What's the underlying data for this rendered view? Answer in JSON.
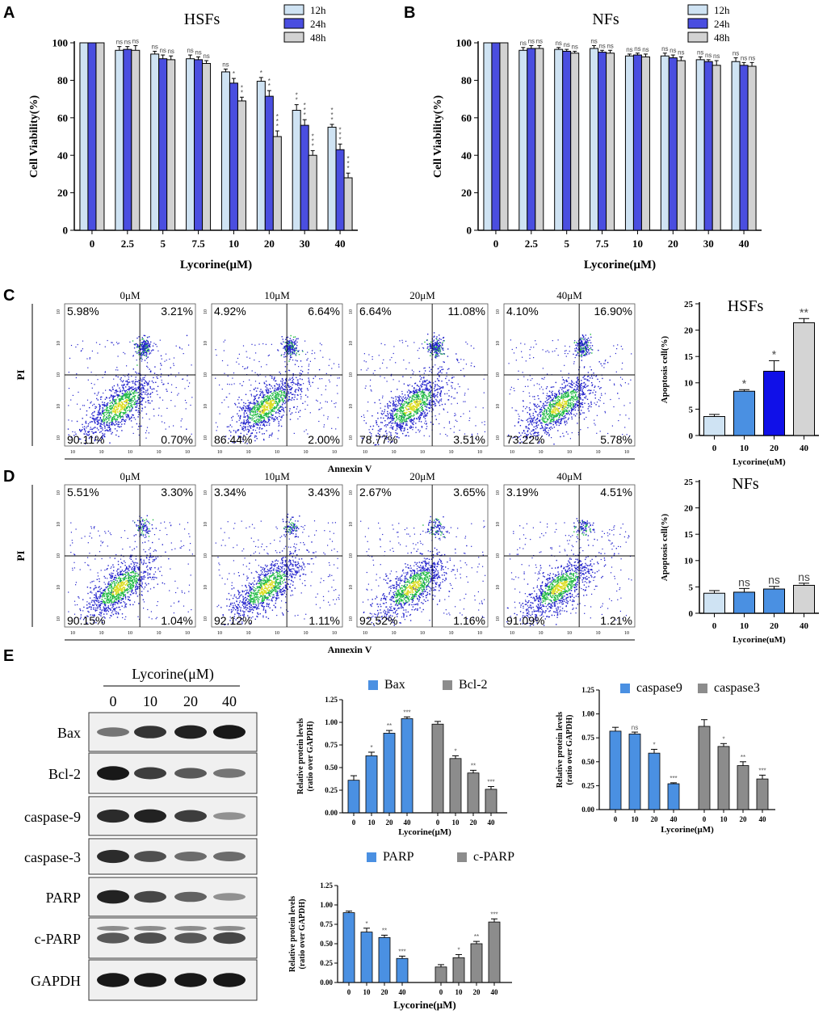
{
  "colors": {
    "series12h": "#cfe3f3",
    "series24h": "#4a4ee0",
    "series48h": "#d2d2d2",
    "hsf_apop": [
      "#cfe3f3",
      "#4a90e2",
      "#1010e8",
      "#d4d4d4"
    ],
    "nf_apop": [
      "#cfe3f3",
      "#4a90e2",
      "#4a90e2",
      "#d4d4d4"
    ],
    "blue_bar": "#4a90e2",
    "gray_bar": "#8c8c8c",
    "dot_blue": "#2222cc",
    "dot_green": "#22bb44",
    "dot_yellow": "#dddd22"
  },
  "panel_labels": {
    "A": "A",
    "B": "B",
    "C": "C",
    "D": "D",
    "E": "E"
  },
  "chart_data": [
    {
      "id": "A",
      "type": "bar",
      "title": "HSFs",
      "xlabel": "Lycorine(μM)",
      "ylabel": "Cell Viability(%)",
      "ylim": [
        0,
        100
      ],
      "yticks": [
        "0",
        "20",
        "40",
        "60",
        "80",
        "100"
      ],
      "categories": [
        "0",
        "2.5",
        "5",
        "7.5",
        "10",
        "20",
        "30",
        "40"
      ],
      "series": [
        {
          "name": "12h",
          "values": [
            100,
            96,
            94,
            91.5,
            84.5,
            79.5,
            64,
            55
          ],
          "errors": [
            0,
            2,
            1.5,
            2,
            1.5,
            2,
            3,
            1.5
          ],
          "sig": [
            "",
            "ns",
            "ns",
            "ns",
            "ns",
            "*",
            "**",
            "***"
          ]
        },
        {
          "name": "24h",
          "values": [
            100,
            96.5,
            91.5,
            91,
            78.5,
            71.5,
            56,
            43
          ],
          "errors": [
            0,
            1.5,
            2,
            1.5,
            2.5,
            3,
            3,
            3
          ],
          "sig": [
            "",
            "ns",
            "ns",
            "ns",
            "*",
            "**",
            "***",
            "***"
          ]
        },
        {
          "name": "48h",
          "values": [
            100,
            96,
            91,
            89,
            69,
            50,
            40,
            28
          ],
          "errors": [
            0,
            2.5,
            2,
            1.5,
            2,
            3,
            2.5,
            2.5
          ],
          "sig": [
            "",
            "ns",
            "ns",
            "ns",
            "**",
            "***",
            "***",
            "***"
          ]
        }
      ]
    },
    {
      "id": "B",
      "type": "bar",
      "title": "NFs",
      "xlabel": "Lycorine(μM)",
      "ylabel": "Cell Viability(%)",
      "ylim": [
        0,
        100
      ],
      "yticks": [
        "0",
        "20",
        "40",
        "60",
        "80",
        "100"
      ],
      "categories": [
        "0",
        "2.5",
        "5",
        "7.5",
        "10",
        "20",
        "30",
        "40"
      ],
      "series": [
        {
          "name": "12h",
          "values": [
            100,
            96,
            96.5,
            97,
            93,
            93,
            91,
            90
          ],
          "errors": [
            0,
            1.5,
            1,
            1.5,
            1,
            1.5,
            1.5,
            2
          ],
          "sig": [
            "",
            "ns",
            "ns",
            "ns",
            "ns",
            "ns",
            "ns",
            "ns"
          ]
        },
        {
          "name": "24h",
          "values": [
            100,
            97,
            95.5,
            95,
            93.5,
            92,
            90,
            88
          ],
          "errors": [
            0,
            1.5,
            1,
            1,
            1,
            1.5,
            1,
            1.5
          ],
          "sig": [
            "",
            "ns",
            "ns",
            "ns",
            "ns",
            "ns",
            "ns",
            "ns"
          ]
        },
        {
          "name": "48h",
          "values": [
            100,
            97,
            94.5,
            94.5,
            92.5,
            90.5,
            88,
            87.5
          ],
          "errors": [
            0,
            1.5,
            1,
            1.5,
            1.5,
            2,
            2.5,
            2
          ],
          "sig": [
            "",
            "ns",
            "ns",
            "ns",
            "ns",
            "ns",
            "ns",
            "ns"
          ]
        }
      ]
    },
    {
      "id": "C-flow",
      "type": "scatter",
      "ylabel": "PI",
      "xlabel": "Annexin V",
      "tick_labels": [
        "10",
        "10",
        "10",
        "10",
        "10",
        "10",
        "10",
        "10",
        "10",
        "10"
      ],
      "plots": [
        {
          "title": "0μM",
          "quadrants": {
            "ul": "5.98%",
            "ur": "3.21%",
            "ll": "90.11%",
            "lr": "0.70%"
          },
          "upper_right_cluster": true
        },
        {
          "title": "10μM",
          "quadrants": {
            "ul": "4.92%",
            "ur": "6.64%",
            "ll": "86.44%",
            "lr": "2.00%"
          },
          "upper_right_cluster": true
        },
        {
          "title": "20μM",
          "quadrants": {
            "ul": "6.64%",
            "ur": "11.08%",
            "ll": "78.77%",
            "lr": "3.51%"
          },
          "upper_right_cluster": true
        },
        {
          "title": "40μM",
          "quadrants": {
            "ul": "4.10%",
            "ur": "16.90%",
            "ll": "73.22%",
            "lr": "5.78%"
          },
          "upper_right_cluster": true
        }
      ]
    },
    {
      "id": "C-bar",
      "type": "bar",
      "title": "HSFs",
      "xlabel": "Lycorine(uM)",
      "ylabel": "Apoptosis cell(%)",
      "ylim": [
        0,
        25
      ],
      "yticks": [
        "0",
        "5",
        "10",
        "15",
        "20",
        "25"
      ],
      "categories": [
        "0",
        "10",
        "20",
        "40"
      ],
      "values": [
        3.6,
        8.4,
        12.2,
        21.4
      ],
      "errors": [
        0.4,
        0.3,
        2,
        0.8
      ],
      "sig": [
        "",
        "*",
        "*",
        "**"
      ]
    },
    {
      "id": "D-flow",
      "type": "scatter",
      "ylabel": "PI",
      "xlabel": "Annexin V",
      "tick_labels": [
        "10",
        "10",
        "10",
        "10",
        "10",
        "10",
        "10",
        "10",
        "10",
        "10"
      ],
      "plots": [
        {
          "title": "0μM",
          "quadrants": {
            "ul": "5.51%",
            "ur": "3.30%",
            "ll": "90.15%",
            "lr": "1.04%"
          },
          "upper_right_cluster": false
        },
        {
          "title": "10μM",
          "quadrants": {
            "ul": "3.34%",
            "ur": "3.43%",
            "ll": "92.12%",
            "lr": "1.11%"
          },
          "upper_right_cluster": false
        },
        {
          "title": "20μM",
          "quadrants": {
            "ul": "2.67%",
            "ur": "3.65%",
            "ll": "92.52%",
            "lr": "1.16%"
          },
          "upper_right_cluster": false
        },
        {
          "title": "40μM",
          "quadrants": {
            "ul": "3.19%",
            "ur": "4.51%",
            "ll": "91.09%",
            "lr": "1.21%"
          },
          "upper_right_cluster": false
        }
      ]
    },
    {
      "id": "D-bar",
      "type": "bar",
      "title": "NFs",
      "xlabel": "Lycorine(uM)",
      "ylabel": "Apoptosis cell(%)",
      "ylim": [
        0,
        25
      ],
      "yticks": [
        "0",
        "5",
        "10",
        "15",
        "20",
        "25"
      ],
      "categories": [
        "0",
        "10",
        "20",
        "40"
      ],
      "values": [
        3.8,
        4.0,
        4.6,
        5.3
      ],
      "errors": [
        0.5,
        0.7,
        0.5,
        0.4
      ],
      "sig": [
        "",
        "ns",
        "ns",
        "ns"
      ]
    },
    {
      "id": "E-blot",
      "type": "table",
      "header": "Lycorine(μM)",
      "lanes": [
        "0",
        "10",
        "20",
        "40"
      ],
      "rows": [
        {
          "name": "Bax",
          "intensity": [
            0.45,
            0.8,
            0.9,
            0.95
          ]
        },
        {
          "name": "Bcl-2",
          "intensity": [
            0.95,
            0.75,
            0.6,
            0.45
          ]
        },
        {
          "name": "caspase-9",
          "intensity": [
            0.85,
            0.9,
            0.75,
            0.3
          ]
        },
        {
          "name": "caspase-3",
          "intensity": [
            0.85,
            0.65,
            0.5,
            0.5
          ]
        },
        {
          "name": "PARP",
          "intensity": [
            0.9,
            0.7,
            0.55,
            0.3
          ]
        },
        {
          "name": "c-PARP",
          "intensity": [
            0.6,
            0.65,
            0.6,
            0.7
          ]
        },
        {
          "name": "GAPDH",
          "intensity": [
            0.95,
            0.95,
            0.95,
            0.95
          ]
        }
      ]
    },
    {
      "id": "E-bax",
      "type": "bar",
      "xlabel": "Lycorine(μM)",
      "ylabel": "Relative protein levels",
      "ylabel2": "(ratio over GAPDH)",
      "ylim": [
        0,
        1.25
      ],
      "yticks": [
        "0.00",
        "0.25",
        "0.50",
        "0.75",
        "1.00",
        "1.25"
      ],
      "categories": [
        "0",
        "10",
        "20",
        "40"
      ],
      "series": [
        {
          "name": "Bax",
          "values": [
            0.36,
            0.63,
            0.88,
            1.04
          ],
          "errors": [
            0.05,
            0.04,
            0.03,
            0.02
          ],
          "sig": [
            "",
            "*",
            "**",
            "***"
          ]
        },
        {
          "name": "Bcl-2",
          "values": [
            0.98,
            0.6,
            0.44,
            0.26
          ],
          "errors": [
            0.03,
            0.03,
            0.03,
            0.03
          ],
          "sig": [
            "",
            "*",
            "**",
            "***"
          ]
        }
      ]
    },
    {
      "id": "E-casp",
      "type": "bar",
      "xlabel": "Lycorine(μM)",
      "ylabel": "Relative protein levels",
      "ylabel2": "(ratio over GAPDH)",
      "ylim": [
        0,
        1.25
      ],
      "yticks": [
        "0.00",
        "0.25",
        "0.50",
        "0.75",
        "1.00",
        "1.25"
      ],
      "categories": [
        "0",
        "10",
        "20",
        "40"
      ],
      "series": [
        {
          "name": "caspase9",
          "values": [
            0.82,
            0.79,
            0.59,
            0.27
          ],
          "errors": [
            0.04,
            0.02,
            0.04,
            0.01
          ],
          "sig": [
            "",
            "ns",
            "*",
            "***"
          ]
        },
        {
          "name": "caspase3",
          "values": [
            0.87,
            0.66,
            0.46,
            0.32
          ],
          "errors": [
            0.07,
            0.03,
            0.04,
            0.04
          ],
          "sig": [
            "",
            "*",
            "**",
            "***"
          ]
        }
      ]
    },
    {
      "id": "E-parp",
      "type": "bar",
      "xlabel": "Lycorine(μM)",
      "ylabel": "Relative protein levels",
      "ylabel2": "(ratio over GAPDH)",
      "ylim": [
        0,
        1.25
      ],
      "yticks": [
        "0.00",
        "0.25",
        "0.50",
        "0.75",
        "1.00",
        "1.25"
      ],
      "categories": [
        "0",
        "10",
        "20",
        "40"
      ],
      "series": [
        {
          "name": "PARP",
          "values": [
            0.9,
            0.65,
            0.58,
            0.31
          ],
          "errors": [
            0.02,
            0.05,
            0.03,
            0.03
          ],
          "sig": [
            "",
            "*",
            "**",
            "***"
          ]
        },
        {
          "name": "c-PARP",
          "values": [
            0.2,
            0.32,
            0.5,
            0.78
          ],
          "errors": [
            0.03,
            0.04,
            0.03,
            0.04
          ],
          "sig": [
            "",
            "*",
            "**",
            "***"
          ]
        }
      ]
    }
  ]
}
